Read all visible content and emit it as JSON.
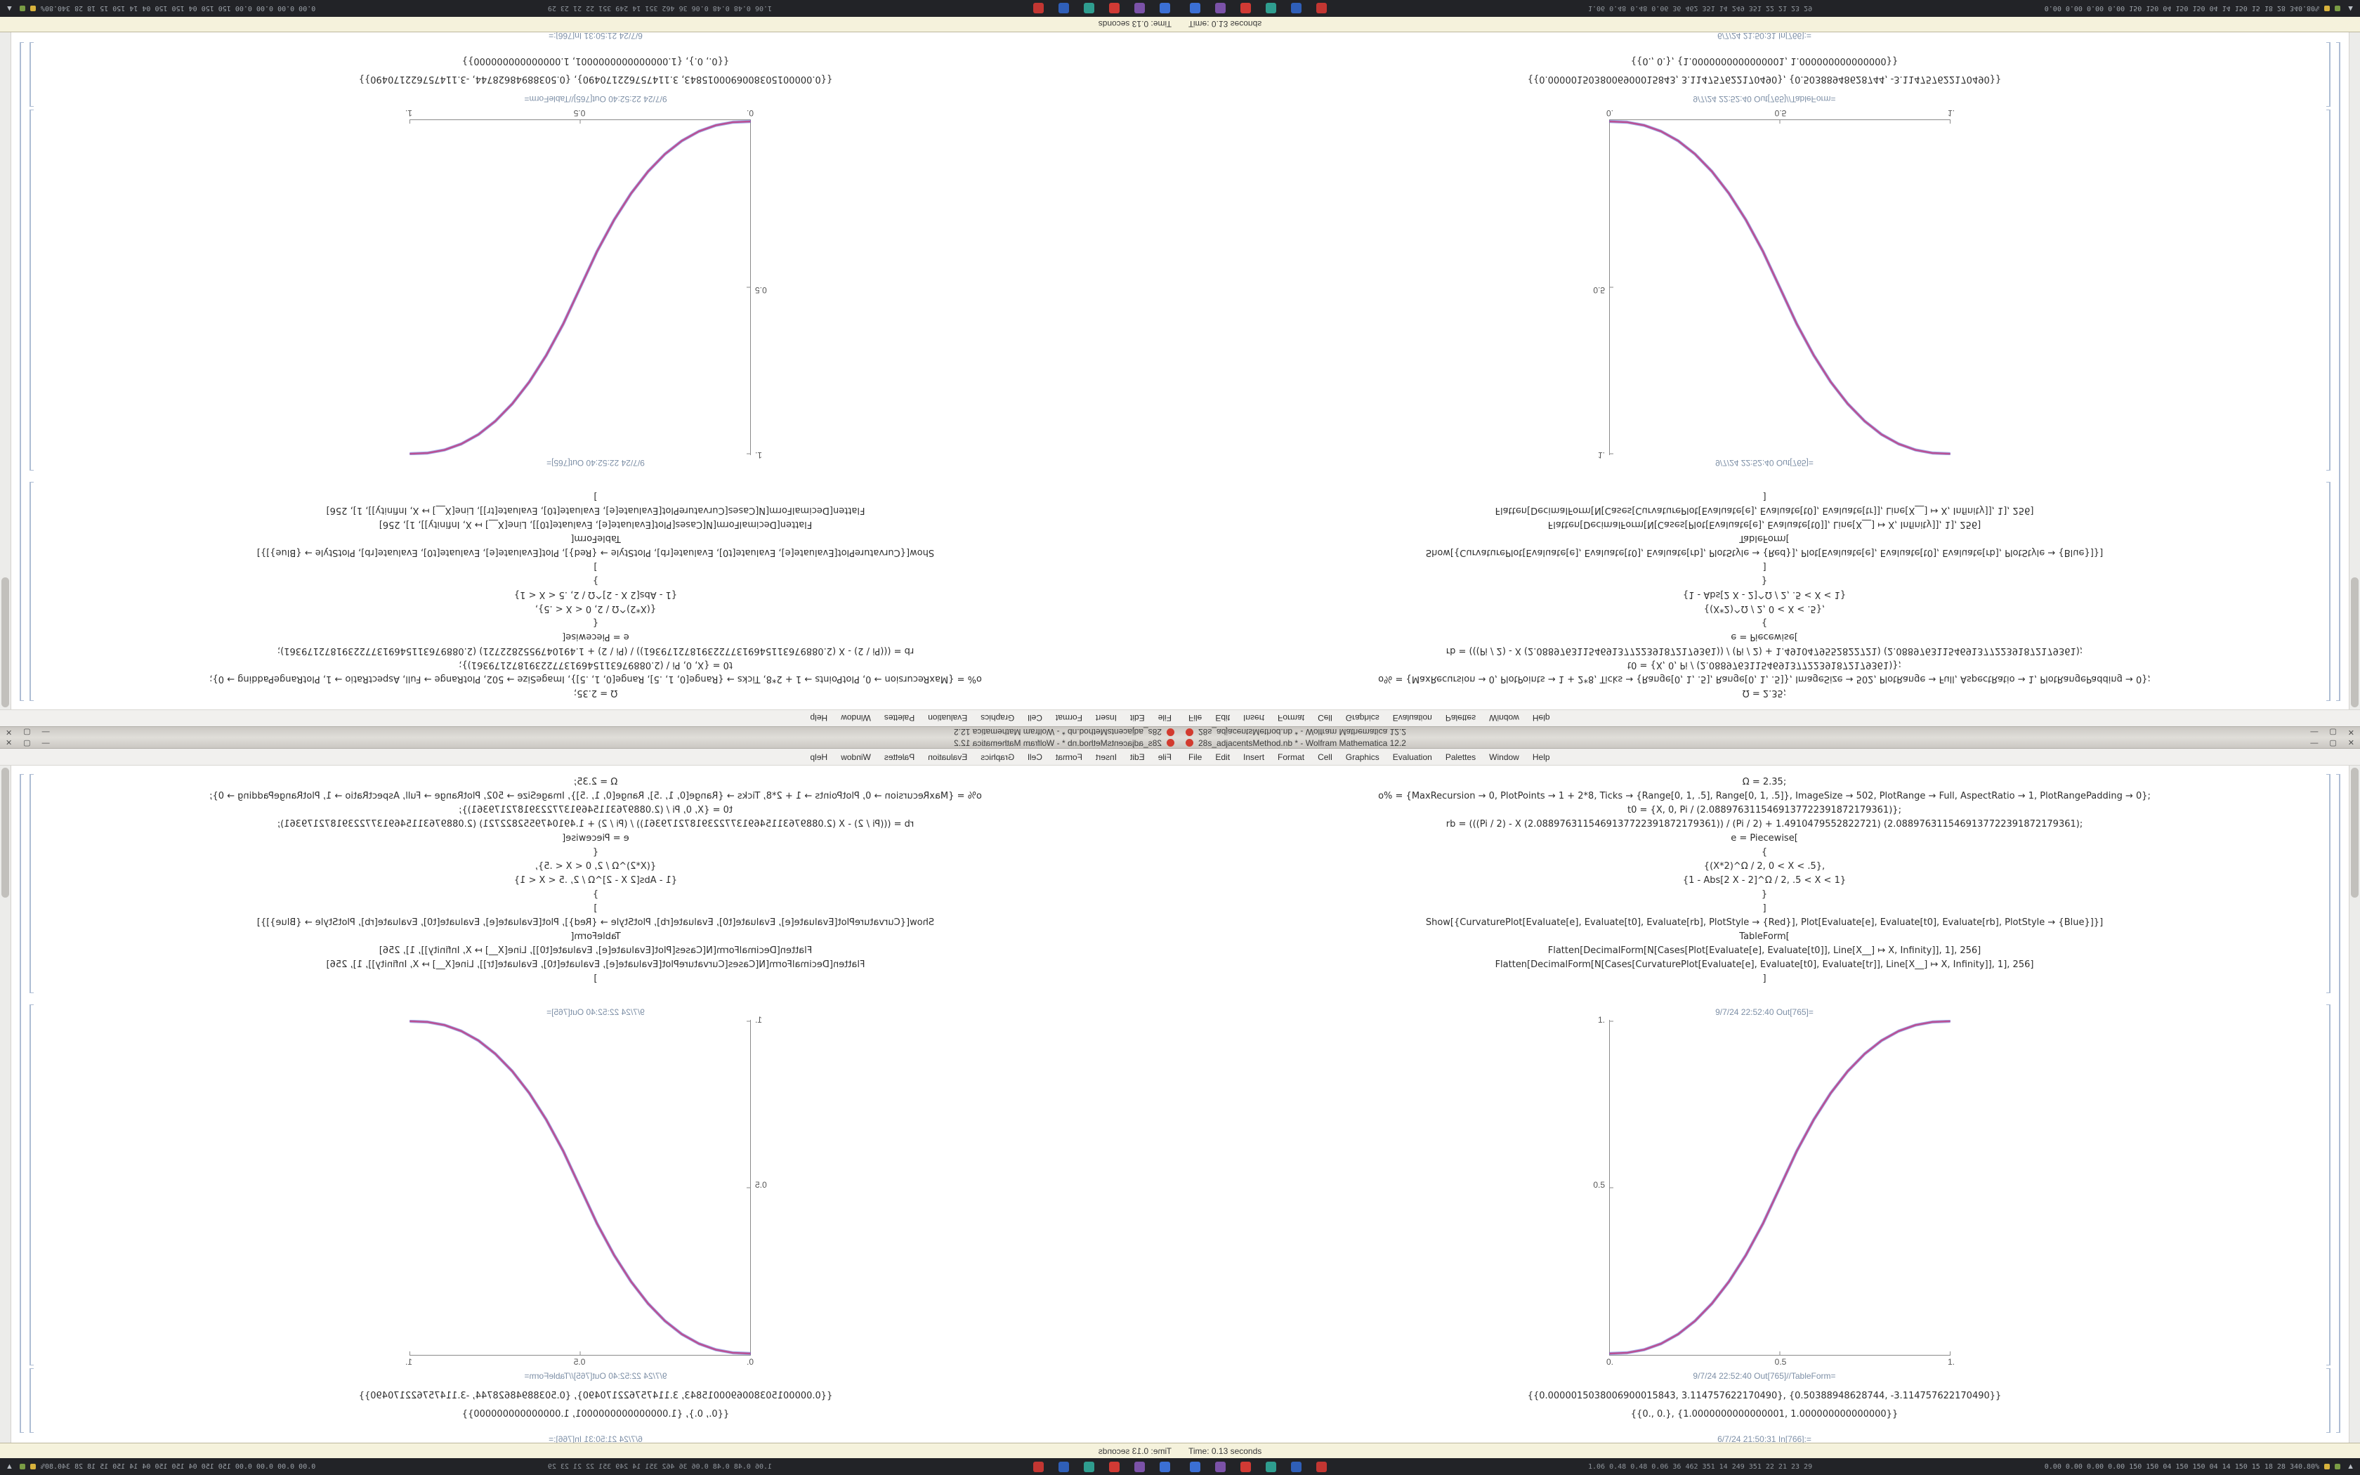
{
  "window": {
    "title": "28s_adjacentsMethod.nb * - Wolfram Mathematica 12.2",
    "minimize_label": "—",
    "maximize_label": "▢",
    "close_label": "✕",
    "menu_items": [
      "File",
      "Edit",
      "Insert",
      "Format",
      "Cell",
      "Graphics",
      "Evaluation",
      "Palettes",
      "Window",
      "Help"
    ],
    "status_text": "Time: 0.13 seconds"
  },
  "notebook": {
    "code_lines": [
      "Ω = 2.35;",
      "o% = {MaxRecursion → 0, PlotPoints → 1 + 2*8, Ticks → {Range[0, 1, .5], Range[0, 1, .5]}, ImageSize → 502, PlotRange → Full, AspectRatio → 1, PlotRangePadding → 0};",
      "t0 = {X, 0, Pi / (2.0889763115469137722391872179361)};",
      "rb = (((Pi / 2) - X (2.0889763115469137722391872179361)) / (Pi / 2) + 1.4910479552822721) (2.0889763115469137722391872179361);",
      "e = Piecewise[",
      "{",
      "{(X*2)^Ω / 2, 0 < X < .5},",
      "{1 - Abs[2 X - 2]^Ω / 2, .5 < X < 1}",
      "}",
      "]",
      "Show[{CurvaturePlot[Evaluate[e], Evaluate[t0], Evaluate[rb], PlotStyle → {Red}], Plot[Evaluate[e], Evaluate[t0], Evaluate[rb], PlotStyle → {Blue}]}]",
      "TableForm[",
      "Flatten[DecimalForm[N[Cases[Plot[Evaluate[e], Evaluate[t0]], Line[X__] ↦ X, Infinity]], 1], 256]",
      "Flatten[DecimalForm[N[Cases[CurvaturePlot[Evaluate[e], Evaluate[t0], Evaluate[tr]], Line[X__] ↦ X, Infinity]], 1], 256]",
      "]"
    ],
    "out_plot_label": "9/7/24 22:52:40 Out[765]=",
    "out_table_label": "9/7/24 22:52:40 Out[765]//TableForm=",
    "result_line_1": "{{0.0000015038006900015843, 3.114757622170490}, {0.50388948628744, -3.114757622170490}}",
    "result_line_2": "{{0., 0.}, {1.0000000000000001, 1.000000000000000}}",
    "next_in_label": "6/7/24 21:50:31 In[766]:="
  },
  "chart_data": {
    "type": "line",
    "title": "",
    "xlabel": "",
    "ylabel": "",
    "xlim": [
      0,
      1
    ],
    "ylim": [
      0,
      1
    ],
    "grid": false,
    "legend": "none",
    "xtick_labels": [
      "0.",
      "0.5",
      "1."
    ],
    "ytick_labels": [
      "1.",
      "0.5"
    ],
    "x": [
      0,
      0.05,
      0.1,
      0.15,
      0.2,
      0.25,
      0.3,
      0.35,
      0.4,
      0.45,
      0.5,
      0.55,
      0.6,
      0.65,
      0.7,
      0.75,
      0.8,
      0.85,
      0.9,
      0.95,
      1
    ],
    "series": [
      {
        "name": "plot-blue",
        "color": "#4a5ed8",
        "stroke_width": 4.4,
        "opacity": 0.5,
        "y": [
          0,
          0.0022,
          0.0114,
          0.0295,
          0.058,
          0.0981,
          0.1505,
          0.2162,
          0.2961,
          0.3903,
          0.5,
          0.6097,
          0.7039,
          0.7838,
          0.8495,
          0.9019,
          0.942,
          0.9705,
          0.9886,
          0.9978,
          1
        ]
      },
      {
        "name": "curvatureplot-red",
        "color": "#bc4b8e",
        "stroke_width": 2.6,
        "opacity": 0.95,
        "y": [
          0,
          0.0022,
          0.0114,
          0.0295,
          0.058,
          0.0981,
          0.1505,
          0.2162,
          0.2961,
          0.3903,
          0.5,
          0.6097,
          0.7039,
          0.7838,
          0.8495,
          0.9019,
          0.942,
          0.9705,
          0.9886,
          0.9978,
          1
        ]
      }
    ]
  },
  "taskbar": {
    "icons": [
      {
        "name": "files-app",
        "color": "#3b6fd4"
      },
      {
        "name": "media-app",
        "color": "#7b52a8"
      },
      {
        "name": "browser-app",
        "color": "#d03a34"
      },
      {
        "name": "chat-app",
        "color": "#2f9d8f"
      },
      {
        "name": "editor-app",
        "color": "#2f5fb8"
      },
      {
        "name": "mail-app",
        "color": "#c23632"
      }
    ],
    "stats_left": "1.06 0.48 0.48 0.06  36 462 351 14 249 351 22 21 23 29",
    "stats_right": "0.00 0.00 0.00 0.00 150 150 04 150 150 04 14 150 15 18 28 340.80%",
    "corner_glyph": "▲"
  },
  "colors": {
    "accent_magenta": "#b153ad",
    "axis": "#8a8a8a",
    "cell_bracket": "#aebdd4",
    "status_bg": "#f5f2dc",
    "taskbar_bg": "#222327"
  }
}
